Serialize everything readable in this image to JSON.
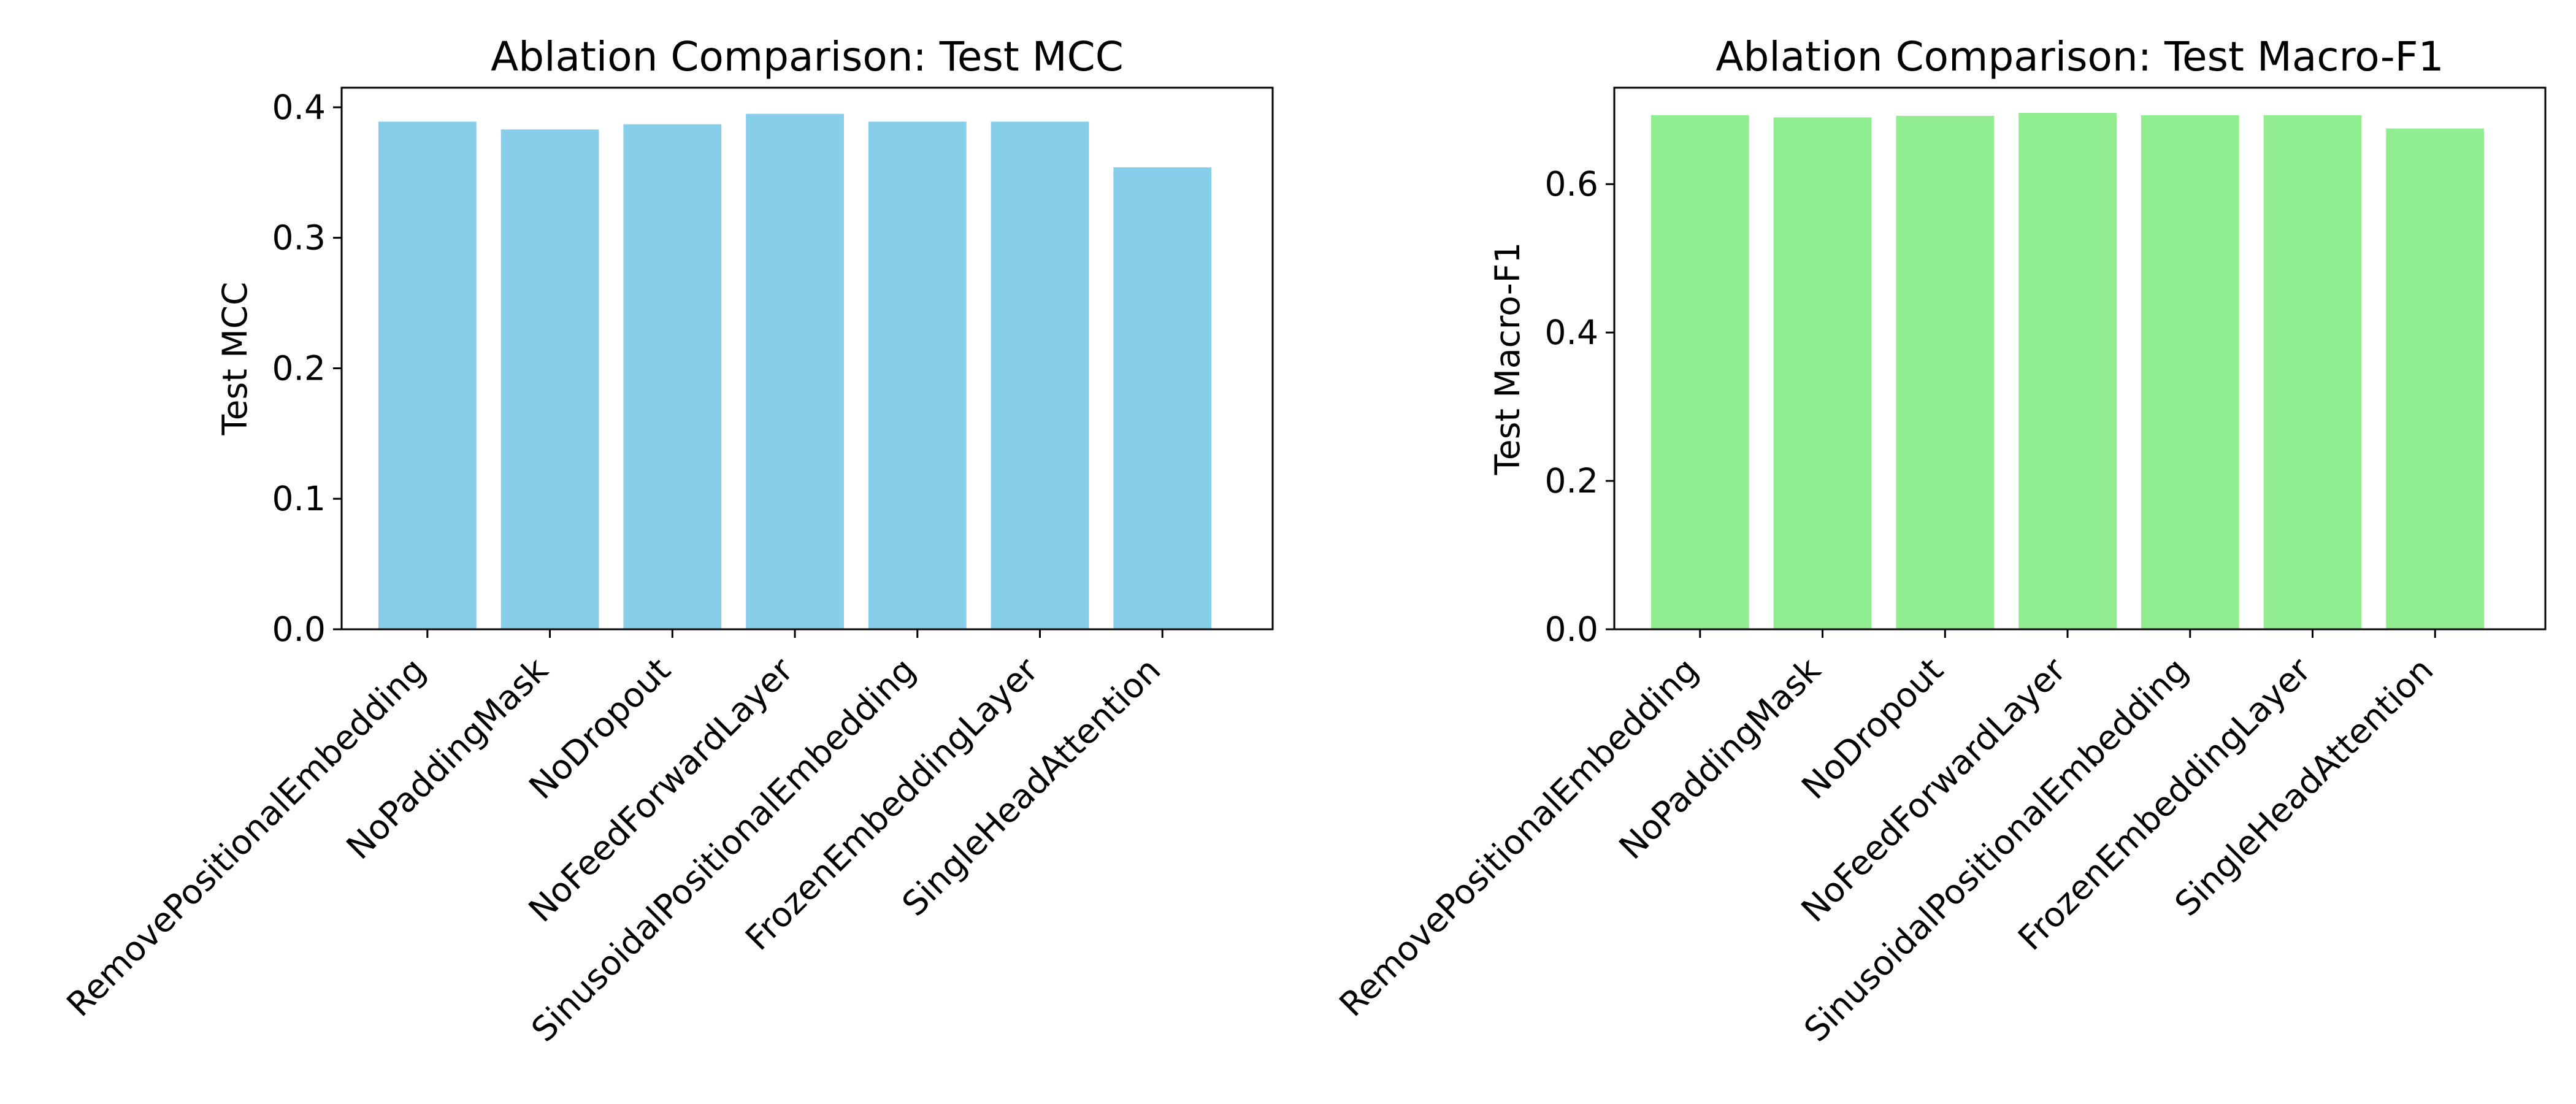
{
  "chart_data": [
    {
      "type": "bar",
      "title": "Ablation Comparison: Test MCC",
      "xlabel": "",
      "ylabel": "Test MCC",
      "categories": [
        "RemovePositionalEmbedding",
        "NoPaddingMask",
        "NoDropout",
        "NoFeedForwardLayer",
        "SinusoidalPositionalEmbedding",
        "FrozenEmbeddingLayer",
        "SingleHeadAttention"
      ],
      "values": [
        0.389,
        0.383,
        0.387,
        0.395,
        0.389,
        0.389,
        0.354
      ],
      "ylim": [
        0,
        0.415
      ],
      "yticks": [
        0.0,
        0.1,
        0.2,
        0.3,
        0.4
      ],
      "ytick_labels": [
        "0.0",
        "0.1",
        "0.2",
        "0.3",
        "0.4"
      ],
      "color": "#87CEEB",
      "grid": false
    },
    {
      "type": "bar",
      "title": "Ablation Comparison: Test Macro-F1",
      "xlabel": "",
      "ylabel": "Test Macro-F1",
      "categories": [
        "RemovePositionalEmbedding",
        "NoPaddingMask",
        "NoDropout",
        "NoFeedForwardLayer",
        "SinusoidalPositionalEmbedding",
        "FrozenEmbeddingLayer",
        "SingleHeadAttention"
      ],
      "values": [
        0.693,
        0.69,
        0.692,
        0.696,
        0.693,
        0.693,
        0.675
      ],
      "ylim": [
        0,
        0.73
      ],
      "yticks": [
        0.0,
        0.2,
        0.4,
        0.6
      ],
      "ytick_labels": [
        "0.0",
        "0.2",
        "0.4",
        "0.6"
      ],
      "color": "#90EE90",
      "grid": false
    }
  ]
}
